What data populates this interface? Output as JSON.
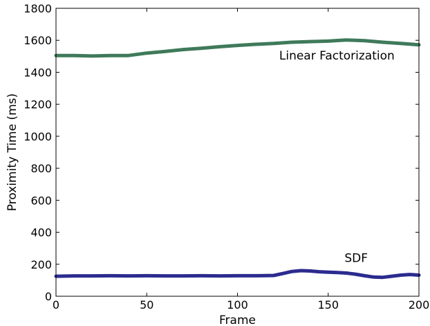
{
  "chart_data": {
    "type": "line",
    "xlabel": "Frame",
    "ylabel": "Proximity Time (ms)",
    "xlim": [
      0,
      200
    ],
    "ylim": [
      0,
      1800
    ],
    "xticks": [
      "0",
      "50",
      "100",
      "150",
      "200"
    ],
    "yticks": [
      "0",
      "200",
      "400",
      "600",
      "800",
      "1000",
      "1200",
      "1400",
      "1600",
      "1800"
    ],
    "grid": false,
    "legend": "none",
    "series": [
      {
        "color": "#3f7a5a",
        "x": [
          0,
          10,
          20,
          30,
          40,
          50,
          60,
          70,
          80,
          90,
          100,
          110,
          120,
          130,
          140,
          150,
          160,
          170,
          180,
          190,
          200
        ],
        "values": [
          1505,
          1505,
          1502,
          1505,
          1505,
          1520,
          1530,
          1542,
          1550,
          1560,
          1568,
          1575,
          1580,
          1588,
          1592,
          1595,
          1602,
          1598,
          1588,
          1580,
          1572
        ]
      },
      {
        "color": "#2b2b8f",
        "x": [
          0,
          10,
          20,
          30,
          40,
          50,
          60,
          70,
          80,
          90,
          100,
          110,
          120,
          125,
          130,
          135,
          140,
          145,
          150,
          155,
          160,
          165,
          170,
          175,
          180,
          185,
          190,
          195,
          200
        ],
        "values": [
          125,
          127,
          127,
          128,
          127,
          128,
          127,
          127,
          128,
          127,
          128,
          128,
          130,
          142,
          155,
          160,
          158,
          153,
          150,
          148,
          145,
          138,
          128,
          120,
          118,
          125,
          132,
          136,
          132
        ]
      }
    ],
    "annotations": [
      {
        "text": "Linear Factorization",
        "x": 123,
        "y": 1480
      },
      {
        "text": "SDF",
        "x": 159,
        "y": 215
      }
    ]
  }
}
